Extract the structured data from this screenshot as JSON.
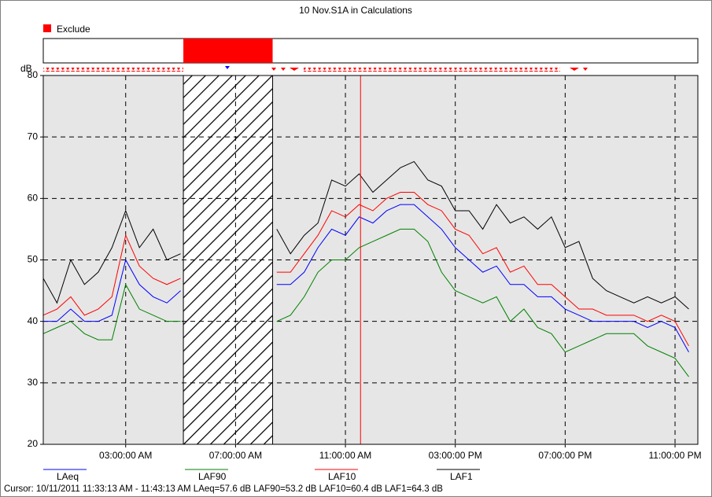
{
  "chart_data": {
    "type": "line",
    "title": "10 Nov.S1A in Calculations",
    "exclude_legend": "Exclude",
    "y_unit": "dB",
    "cursor_text": "Cursor: 10/11/2011 11:33:13 AM - 11:43:13 AM  LAeq=57.6 dB  LAF90=53.2 dB  LAF10=60.4 dB  LAF1=64.3 dB",
    "cursor_x": 11.55,
    "exclude_range": [
      5.1,
      8.35
    ],
    "exclude_color": "#ff0000",
    "x": [
      0,
      0.5,
      1,
      1.5,
      2,
      2.5,
      3,
      3.5,
      4,
      4.5,
      5,
      5.5,
      6,
      6.5,
      7,
      7.5,
      8,
      8.5,
      9,
      9.5,
      10,
      10.5,
      11,
      11.5,
      12,
      12.5,
      13,
      13.5,
      14,
      14.5,
      15,
      15.5,
      16,
      16.5,
      17,
      17.5,
      18,
      18.5,
      19,
      19.5,
      20,
      20.5,
      21,
      21.5,
      22,
      22.5,
      23,
      23.5
    ],
    "series": [
      {
        "name": "LAeq",
        "color": "#0000ff",
        "values": [
          40,
          40,
          42,
          40,
          40,
          41,
          50,
          46,
          44,
          43,
          45,
          null,
          null,
          null,
          null,
          null,
          null,
          46,
          46,
          48,
          52,
          55,
          54,
          57,
          56,
          58,
          59,
          59,
          57,
          55,
          52,
          50,
          48,
          49,
          46,
          46,
          44,
          44,
          42,
          41,
          40,
          40,
          40,
          40,
          39,
          40,
          39,
          35
        ]
      },
      {
        "name": "LAF90",
        "color": "#008000",
        "values": [
          38,
          39,
          40,
          38,
          37,
          37,
          46,
          42,
          41,
          40,
          40,
          null,
          null,
          null,
          null,
          null,
          null,
          40,
          41,
          44,
          48,
          50,
          50,
          52,
          53,
          54,
          55,
          55,
          53,
          48,
          45,
          44,
          43,
          44,
          40,
          42,
          39,
          38,
          35,
          36,
          37,
          38,
          38,
          38,
          36,
          35,
          34,
          31
        ]
      },
      {
        "name": "LAF10",
        "color": "#ff0000",
        "values": [
          41,
          42,
          44,
          41,
          42,
          44,
          54,
          49,
          47,
          46,
          47,
          null,
          null,
          null,
          null,
          null,
          null,
          48,
          48,
          51,
          54,
          58,
          57,
          59,
          58,
          60,
          61,
          61,
          59,
          58,
          55,
          54,
          51,
          52,
          48,
          49,
          46,
          46,
          44,
          42,
          42,
          41,
          41,
          41,
          40,
          41,
          40,
          36
        ]
      },
      {
        "name": "LAF1",
        "color": "#000000",
        "values": [
          47,
          43,
          50,
          46,
          48,
          52,
          58,
          52,
          55,
          50,
          51,
          null,
          null,
          null,
          null,
          null,
          null,
          55,
          51,
          54,
          56,
          63,
          62,
          64,
          61,
          63,
          65,
          66,
          63,
          62,
          58,
          58,
          55,
          59,
          56,
          57,
          55,
          57,
          52,
          53,
          47,
          45,
          44,
          43,
          44,
          43,
          44,
          42
        ]
      }
    ],
    "xlim": [
      0,
      23.83
    ],
    "xticks": [
      {
        "value": 3,
        "label": "03:00:00 AM"
      },
      {
        "value": 7,
        "label": "07:00:00 AM"
      },
      {
        "value": 11,
        "label": "11:00:00 AM"
      },
      {
        "value": 15,
        "label": "03:00:00 PM"
      },
      {
        "value": 19,
        "label": "07:00:00 PM"
      },
      {
        "value": 23,
        "label": "11:00:00 PM"
      }
    ],
    "ylim": [
      20,
      80
    ],
    "yticks": [
      20,
      30,
      40,
      50,
      60,
      70,
      80
    ],
    "grid": true
  }
}
